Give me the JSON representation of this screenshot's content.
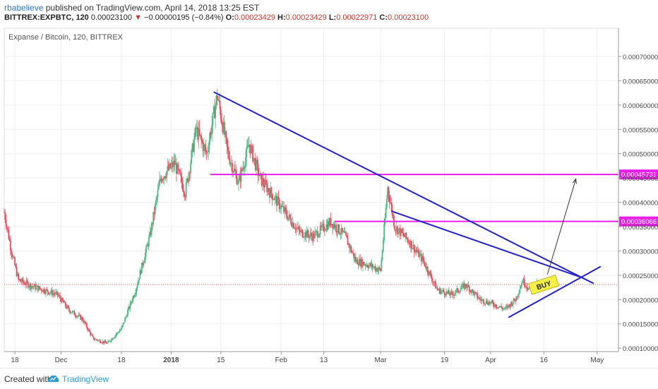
{
  "header": {
    "author": "rbabelieve",
    "published_text": "published on TradingView.com, April 14, 2018 13:25 EST",
    "symbol": "BITTREX:EXPBTC, 120",
    "last_price": "0.00023100",
    "change_arrow": "▼",
    "change": "−0.00000195 (−0.84%)",
    "o_label": "O:",
    "o_value": "0.00023429",
    "h_label": "H:",
    "h_value": "0.00023429",
    "l_label": "L:",
    "l_value": "0.00022971",
    "c_label": "C:",
    "c_value": "0.00023100"
  },
  "footer": {
    "created_with": "Created with",
    "brand": "TradingView",
    "brand_icon": "tradingview-logo-icon"
  },
  "chart_data": {
    "type": "candlestick",
    "title": "Expanse / Bitcoin, 120, BITTREX",
    "x_tick_labels": [
      "18",
      "Dec",
      "18",
      "2018",
      "15",
      "Feb",
      "13",
      "Mar",
      "19",
      "Apr",
      "16",
      "May"
    ],
    "y_tick_labels": [
      "0.00010000",
      "0.00015000",
      "0.00020000",
      "0.00025000",
      "0.00030000",
      "0.00035000",
      "0.00040000",
      "0.00045000",
      "0.00050000",
      "0.00055000",
      "0.00060000",
      "0.00065000",
      "0.00070000"
    ],
    "ylim": [
      9.3e-05,
      0.000758
    ],
    "x_range": [
      "2017-11-15",
      "2018-05-07"
    ],
    "grid": true,
    "current_price": 0.000231,
    "price_series_approx": [
      [
        "2017-11-15",
        0.00038
      ],
      [
        "2017-11-17",
        0.0003
      ],
      [
        "2017-11-19",
        0.00024
      ],
      [
        "2017-11-22",
        0.00023
      ],
      [
        "2017-11-26",
        0.00022
      ],
      [
        "2017-11-30",
        0.00021
      ],
      [
        "2017-12-03",
        0.00018
      ],
      [
        "2017-12-07",
        0.00016
      ],
      [
        "2017-12-10",
        0.00012
      ],
      [
        "2017-12-14",
        0.00011
      ],
      [
        "2017-12-18",
        0.00014
      ],
      [
        "2017-12-22",
        0.00022
      ],
      [
        "2017-12-26",
        0.00033
      ],
      [
        "2017-12-29",
        0.00045
      ],
      [
        "2018-01-02",
        0.00048
      ],
      [
        "2018-01-05",
        0.00042
      ],
      [
        "2018-01-08",
        0.00055
      ],
      [
        "2018-01-11",
        0.0005
      ],
      [
        "2018-01-14",
        0.00062
      ],
      [
        "2018-01-17",
        0.0005
      ],
      [
        "2018-01-20",
        0.00044
      ],
      [
        "2018-01-23",
        0.00052
      ],
      [
        "2018-01-26",
        0.00045
      ],
      [
        "2018-01-29",
        0.00042
      ],
      [
        "2018-02-02",
        0.00038
      ],
      [
        "2018-02-06",
        0.00034
      ],
      [
        "2018-02-10",
        0.00033
      ],
      [
        "2018-02-15",
        0.00036
      ],
      [
        "2018-02-19",
        0.00033
      ],
      [
        "2018-02-22",
        0.00028
      ],
      [
        "2018-02-26",
        0.00027
      ],
      [
        "2018-03-01",
        0.00026
      ],
      [
        "2018-03-03",
        0.00043
      ],
      [
        "2018-03-05",
        0.00035
      ],
      [
        "2018-03-09",
        0.00032
      ],
      [
        "2018-03-13",
        0.00028
      ],
      [
        "2018-03-17",
        0.00022
      ],
      [
        "2018-03-21",
        0.00021
      ],
      [
        "2018-03-25",
        0.00023
      ],
      [
        "2018-03-29",
        0.0002
      ],
      [
        "2018-04-02",
        0.00019
      ],
      [
        "2018-04-05",
        0.00018
      ],
      [
        "2018-04-08",
        0.0002
      ],
      [
        "2018-04-10",
        0.00024
      ],
      [
        "2018-04-12",
        0.00022
      ],
      [
        "2018-04-14",
        0.000231
      ]
    ],
    "annotations": {
      "horizontal_levels": [
        {
          "label": "0.00045731",
          "value": 0.00045731,
          "from": "2018-01-12",
          "color": "#e91ee9"
        },
        {
          "label": "0.00036066",
          "value": 0.00036066,
          "from": "2018-02-16",
          "color": "#e91ee9"
        }
      ],
      "trend_lines": [
        {
          "from": [
            "2018-01-13",
            0.000627
          ],
          "to": [
            "2018-04-30",
            0.000233
          ],
          "color": "#2222cc"
        },
        {
          "from": [
            "2018-03-04",
            0.000382
          ],
          "to": [
            "2018-04-26",
            0.000247
          ],
          "color": "#2222cc"
        },
        {
          "from": [
            "2018-04-06",
            0.000163
          ],
          "to": [
            "2018-05-02",
            0.000268
          ],
          "color": "#2222cc"
        }
      ],
      "arrow": {
        "from": [
          "2018-04-17",
          0.000252
        ],
        "to": [
          "2018-04-25",
          0.000448
        ],
        "color": "#333333"
      },
      "buy_label": {
        "text": "BUY",
        "at": [
          "2018-04-16",
          0.000229
        ],
        "color": "#f5ef4a"
      }
    }
  }
}
